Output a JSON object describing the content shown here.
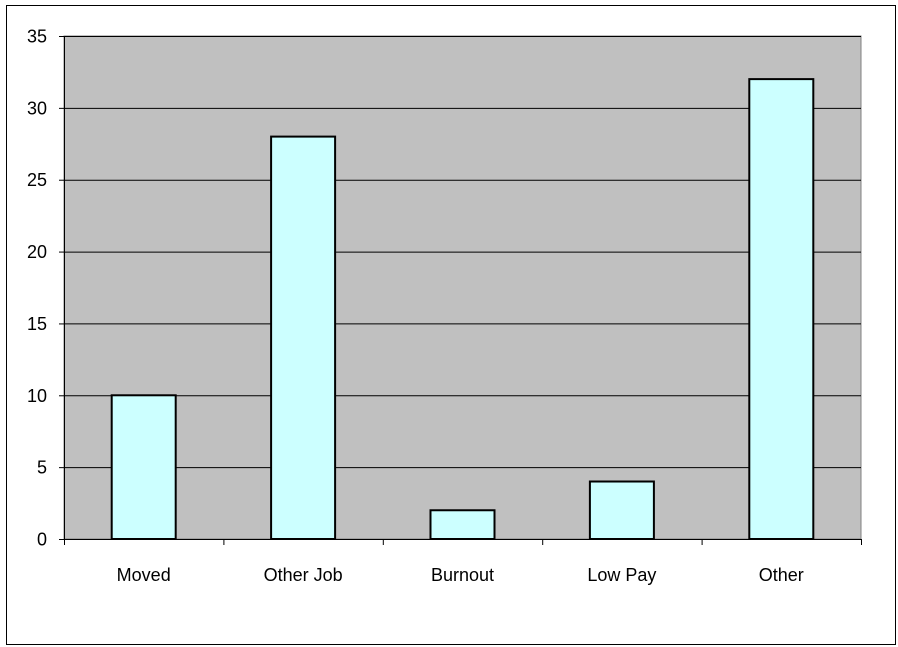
{
  "chart_data": {
    "type": "bar",
    "title": "",
    "xlabel": "",
    "ylabel": "",
    "categories": [
      "Moved",
      "Other Job",
      "Burnout",
      "Low Pay",
      "Other"
    ],
    "values": [
      10,
      28,
      2,
      4,
      32
    ],
    "ylim": [
      0,
      35
    ],
    "yticks": [
      0,
      5,
      10,
      15,
      20,
      25,
      30,
      35
    ],
    "grid": true,
    "legend": "none",
    "colors": {
      "plot_background": "#c0c0c0",
      "bar_fill": "#ccffff",
      "bar_stroke": "#000000",
      "gridline": "#000000",
      "axis": "#000000"
    }
  }
}
